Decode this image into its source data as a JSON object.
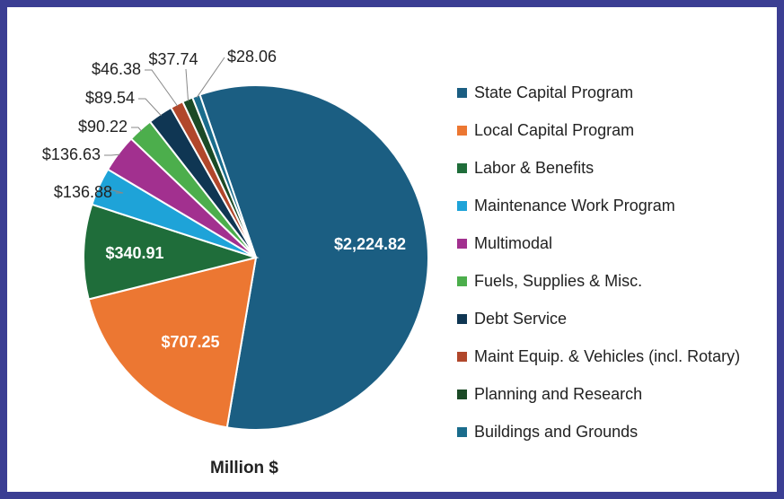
{
  "chart_data": {
    "type": "pie",
    "title": "Million $",
    "categories": [
      "State Capital Program",
      "Local Capital Program",
      "Labor & Benefits",
      "Maintenance Work Program",
      "Multimodal",
      "Fuels, Supplies & Misc.",
      "Debt Service",
      "Maint Equip. & Vehicles (incl. Rotary)",
      "Planning and Research",
      "Buildings and Grounds"
    ],
    "values": [
      2224.82,
      707.25,
      340.91,
      136.88,
      136.63,
      90.22,
      89.54,
      46.38,
      37.74,
      28.06
    ],
    "value_labels": [
      "$2,224.82",
      "$707.25",
      "$340.91",
      "$136.88",
      "$136.63",
      "$90.22",
      "$89.54",
      "$46.38",
      "$37.74",
      "$28.06"
    ],
    "colors": [
      "#1b5e82",
      "#ec7732",
      "#1f6d3a",
      "#1ea3d8",
      "#a2308f",
      "#4cae4c",
      "#0f3653",
      "#b1472b",
      "#1b4a26",
      "#1a6c8c"
    ],
    "legend": "right"
  }
}
